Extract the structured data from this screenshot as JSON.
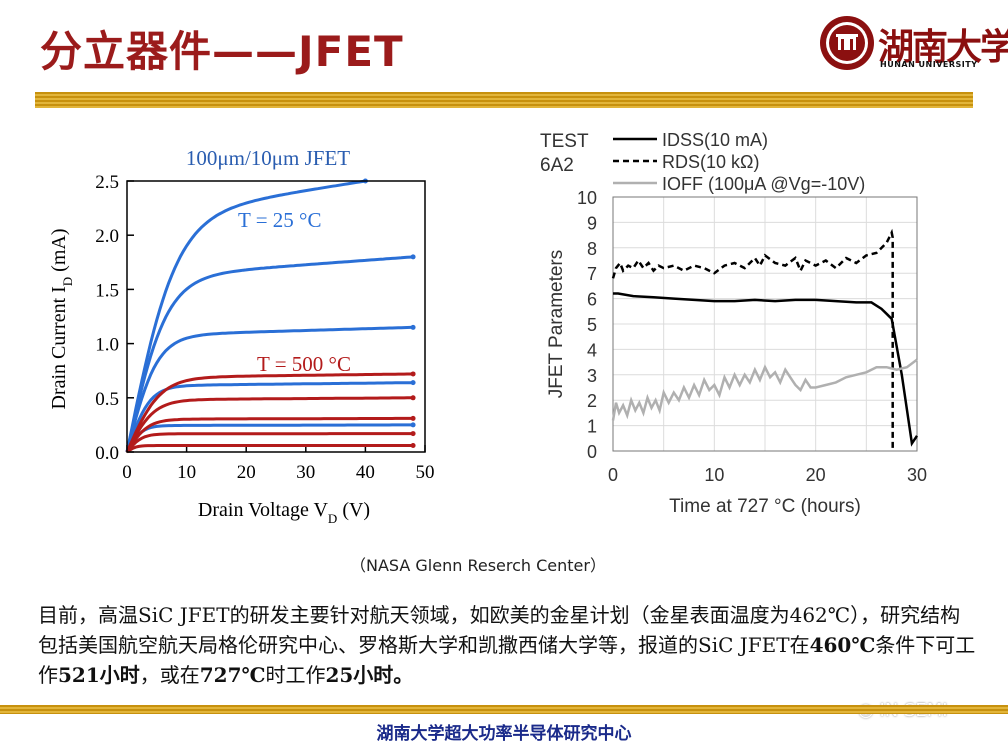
{
  "page": {
    "title": "分立器件——JFET",
    "logo": {
      "cn": "湖南大学",
      "en": "HUNAN UNIVERSITY"
    },
    "caption": "（NASA Glenn Reserch Center）",
    "paragraph": {
      "part1": "目前，高温SiC JFET的研发主要针对航天领域，如欧美的金星计划（金星表面温度为462℃），研究结构包括美国航空航天局格伦研究中心、罗格斯大学和凯撒西储大学等，报道的SiC JFET在",
      "b1": "460℃",
      "part2": "条件下可工作",
      "b2": "521小时",
      "part3": "，或在",
      "b3": "727℃",
      "part4": "时工作",
      "b4": "25小时。"
    },
    "footer": "湖南大学超大功率半导体研究中心",
    "watermark": "IN SEMI"
  },
  "colors": {
    "title": "#9b1b1b",
    "blue": "#2a6fd6",
    "red": "#b31b1b",
    "gray": "#b0b0b0",
    "footer": "#1a2a8a"
  },
  "chart_data": [
    {
      "type": "line",
      "title": "100μm/10μm JFET",
      "xlabel": "Drain Voltage V_D (V)",
      "ylabel": "Drain Current I_D (mA)",
      "xlim": [
        0,
        50
      ],
      "ylim": [
        0,
        2.5
      ],
      "xticks": [
        "0",
        "10",
        "20",
        "30",
        "40",
        "50"
      ],
      "yticks": [
        "0.0",
        "0.5",
        "1.0",
        "1.5",
        "2.0",
        "2.5"
      ],
      "annotations": [
        "T = 25 °C",
        "T = 500 °C"
      ],
      "series": [
        {
          "color": "#2a6fd6",
          "group": "T = 25 °C",
          "sat": 2.5,
          "vk": 8.0,
          "xmax": 40,
          "slope": 0.004
        },
        {
          "color": "#2a6fd6",
          "group": "T = 25 °C",
          "sat": 1.8,
          "vk": 6.5,
          "xmax": 48,
          "slope": 0.0025
        },
        {
          "color": "#2a6fd6",
          "group": "T = 25 °C",
          "sat": 1.15,
          "vk": 5.0,
          "xmax": 48,
          "slope": 0.0015
        },
        {
          "color": "#2a6fd6",
          "group": "T = 25 °C",
          "sat": 0.64,
          "vk": 3.8,
          "xmax": 48,
          "slope": 0.001
        },
        {
          "color": "#2a6fd6",
          "group": "T = 25 °C",
          "sat": 0.25,
          "vk": 2.5,
          "xmax": 48,
          "slope": 0.0005
        },
        {
          "color": "#b31b1b",
          "group": "T = 500 °C",
          "sat": 0.72,
          "vk": 5.5,
          "xmax": 48,
          "slope": 0.001
        },
        {
          "color": "#b31b1b",
          "group": "T = 500 °C",
          "sat": 0.5,
          "vk": 4.5,
          "xmax": 48,
          "slope": 0.0008
        },
        {
          "color": "#b31b1b",
          "group": "T = 500 °C",
          "sat": 0.31,
          "vk": 3.5,
          "xmax": 48,
          "slope": 0.0005
        },
        {
          "color": "#b31b1b",
          "group": "T = 500 °C",
          "sat": 0.17,
          "vk": 2.5,
          "xmax": 48,
          "slope": 0.0003
        },
        {
          "color": "#b31b1b",
          "group": "T = 500 °C",
          "sat": 0.06,
          "vk": 1.5,
          "xmax": 48,
          "slope": 0.0001
        }
      ]
    },
    {
      "type": "line",
      "xlabel": "Time at 727 °C (hours)",
      "ylabel": "JFET Parameters",
      "xlim": [
        0,
        30
      ],
      "ylim": [
        0,
        10
      ],
      "xticks": [
        "0",
        "10",
        "20",
        "30"
      ],
      "yticks": [
        "0",
        "1",
        "2",
        "3",
        "4",
        "5",
        "6",
        "7",
        "8",
        "9",
        "10"
      ],
      "grid": true,
      "legend_title": "TEST 6A2",
      "series": [
        {
          "name": "IDSS(10 mA)",
          "style": "solid",
          "color": "#000000",
          "x": [
            0,
            0.5,
            2,
            4,
            6,
            8,
            10,
            12,
            14,
            16,
            18,
            20,
            22,
            24,
            25.5,
            26.5,
            27,
            27.5,
            28.5,
            29.5,
            30
          ],
          "y": [
            6.2,
            6.2,
            6.1,
            6.05,
            6.0,
            5.95,
            5.9,
            5.9,
            5.95,
            5.9,
            5.95,
            5.95,
            5.9,
            5.85,
            5.85,
            5.6,
            5.4,
            5.2,
            3.0,
            0.3,
            0.6
          ]
        },
        {
          "name": "RDS(10 kΩ)",
          "style": "dashed",
          "color": "#000000",
          "x": [
            0,
            0.3,
            0.7,
            1,
            1.5,
            2,
            2.5,
            3,
            3.5,
            4,
            4.5,
            5,
            6,
            7,
            8,
            9,
            10,
            11,
            12,
            13,
            14,
            14.5,
            15,
            16,
            17,
            18,
            18.5,
            19,
            20,
            21,
            22,
            23,
            24,
            25,
            26,
            27,
            27.5,
            27.6,
            27.6
          ],
          "y": [
            6.8,
            7.2,
            7.4,
            7.1,
            7.3,
            7.2,
            7.5,
            7.2,
            7.4,
            7.1,
            7.3,
            7.2,
            7.3,
            7.1,
            7.3,
            7.2,
            7.0,
            7.3,
            7.4,
            7.2,
            7.6,
            7.3,
            7.7,
            7.4,
            7.3,
            7.6,
            7.1,
            7.5,
            7.3,
            7.5,
            7.2,
            7.6,
            7.4,
            7.7,
            7.8,
            8.2,
            8.6,
            8.4,
            0
          ]
        },
        {
          "name": "IOFF (100μA @Vg=-10V)",
          "style": "solid",
          "color": "#b0b0b0",
          "x": [
            0,
            0.3,
            0.6,
            1,
            1.4,
            1.8,
            2.2,
            2.6,
            3,
            3.4,
            3.8,
            4.2,
            4.6,
            5,
            5.5,
            6,
            6.5,
            7,
            7.5,
            8,
            8.5,
            9,
            9.5,
            10,
            10.5,
            11,
            11.5,
            12,
            12.5,
            13,
            13.5,
            14,
            14.5,
            15,
            15.5,
            16,
            16.5,
            17,
            17.5,
            18,
            18.5,
            19,
            19.5,
            20,
            21,
            22,
            23,
            24,
            25,
            26,
            27,
            28,
            29,
            30
          ],
          "y": [
            1.2,
            1.9,
            1.5,
            1.8,
            1.4,
            2.0,
            1.6,
            1.9,
            1.5,
            2.1,
            1.7,
            2.0,
            1.6,
            2.3,
            1.9,
            2.3,
            2.0,
            2.5,
            2.1,
            2.6,
            2.2,
            2.8,
            2.4,
            2.6,
            2.2,
            2.9,
            2.5,
            3.0,
            2.6,
            3.0,
            2.7,
            3.2,
            2.8,
            3.3,
            2.9,
            3.1,
            2.7,
            3.2,
            2.9,
            2.6,
            2.4,
            2.8,
            2.5,
            2.5,
            2.6,
            2.7,
            2.9,
            3.0,
            3.1,
            3.3,
            3.3,
            3.2,
            3.3,
            3.6
          ]
        }
      ]
    }
  ]
}
